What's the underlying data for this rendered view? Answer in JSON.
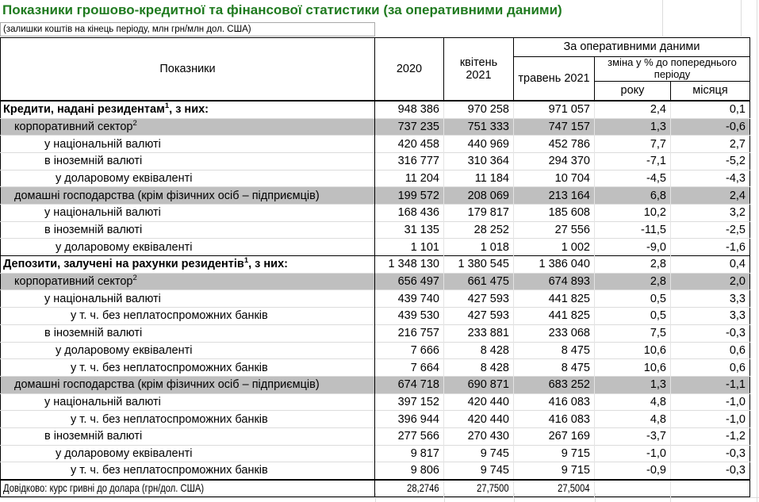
{
  "page": {
    "title": "Показники грошово-кредитної та фінансової статистики (за оперативними даними)",
    "subtitle": "(залишки коштів на кінець періоду, млн грн/млн дол. США)",
    "title_color": "#1f7a1f",
    "shade_color": "#bfbfbf"
  },
  "table": {
    "header": {
      "indicators": "Показники",
      "col_2020": "2020",
      "col_apr": "квітень 2021",
      "operational_group": "За оперативними даними",
      "col_may": "травень 2021",
      "change_group": "зміна у % до попереднього періоду",
      "col_year": "року",
      "col_month": "місяця"
    },
    "rows": [
      {
        "label": "Кредити, надані резидентам",
        "sup": "1",
        "tail": ", з них:",
        "bold": true,
        "indent": 0,
        "shaded": false,
        "values": [
          "948 386",
          "970 258",
          "971 057",
          "2,4",
          "0,1"
        ]
      },
      {
        "label": "корпоративний сектор",
        "sup": "2",
        "indent": 1,
        "shaded": true,
        "values": [
          "737 235",
          "751 333",
          "747 157",
          "1,3",
          "-0,6"
        ]
      },
      {
        "label": "у національній валюті",
        "indent": 2,
        "values": [
          "420 458",
          "440 969",
          "452 786",
          "7,7",
          "2,7"
        ]
      },
      {
        "label": "в іноземній валюті",
        "indent": 2,
        "values": [
          "316 777",
          "310 364",
          "294 370",
          "-7,1",
          "-5,2"
        ]
      },
      {
        "label": "у доларовому еквіваленті",
        "indent": 3,
        "values": [
          "11 204",
          "11 184",
          "10 704",
          "-4,5",
          "-4,3"
        ]
      },
      {
        "label": "домашні господарства (крім фізичних осіб – підприємців)",
        "indent": 1,
        "shaded": true,
        "values": [
          "199 572",
          "208 069",
          "213 164",
          "6,8",
          "2,4"
        ]
      },
      {
        "label": "у національній валюті",
        "indent": 2,
        "values": [
          "168 436",
          "179 817",
          "185 608",
          "10,2",
          "3,2"
        ]
      },
      {
        "label": "в іноземній валюті",
        "indent": 2,
        "values": [
          "31 135",
          "28 252",
          "27 556",
          "-11,5",
          "-2,5"
        ]
      },
      {
        "label": "у доларовому еквіваленті",
        "indent": 3,
        "values": [
          "1 101",
          "1 018",
          "1 002",
          "-9,0",
          "-1,6"
        ]
      },
      {
        "label": "Депозити, залучені на рахунки резидентів",
        "sup": "1",
        "tail": ", з них:",
        "bold": true,
        "indent": 0,
        "shaded": false,
        "values": [
          "1 348 130",
          "1 380 545",
          "1 386 040",
          "2,8",
          "0,4"
        ]
      },
      {
        "label": "корпоративний сектор",
        "sup": "2",
        "indent": 1,
        "shaded": true,
        "values": [
          "656 497",
          "661 475",
          "674 893",
          "2,8",
          "2,0"
        ]
      },
      {
        "label": "у національній валюті",
        "indent": 2,
        "values": [
          "439 740",
          "427 593",
          "441 825",
          "0,5",
          "3,3"
        ]
      },
      {
        "label": "у т. ч. без неплатоспроможних банків",
        "indent": 4,
        "values": [
          "439 530",
          "427 593",
          "441 825",
          "0,5",
          "3,3"
        ]
      },
      {
        "label": "в іноземній валюті",
        "indent": 2,
        "values": [
          "216 757",
          "233 881",
          "233 068",
          "7,5",
          "-0,3"
        ]
      },
      {
        "label": "у доларовому еквіваленті",
        "indent": 3,
        "values": [
          "7 666",
          "8 428",
          "8 475",
          "10,6",
          "0,6"
        ]
      },
      {
        "label": "у т. ч. без неплатоспроможних банків",
        "indent": 4,
        "values": [
          "7 664",
          "8 428",
          "8 475",
          "10,6",
          "0,6"
        ]
      },
      {
        "label": "домашні господарства (крім фізичних осіб – підприємців)",
        "indent": 1,
        "shaded": true,
        "values": [
          "674 718",
          "690 871",
          "683 252",
          "1,3",
          "-1,1"
        ]
      },
      {
        "label": "у національній валюті",
        "indent": 2,
        "values": [
          "397 152",
          "420 440",
          "416 083",
          "4,8",
          "-1,0"
        ]
      },
      {
        "label": "у т. ч. без неплатоспроможних банків",
        "indent": 4,
        "values": [
          "396 944",
          "420 440",
          "416 083",
          "4,8",
          "-1,0"
        ]
      },
      {
        "label": "в іноземній валюті",
        "indent": 2,
        "values": [
          "277 566",
          "270 430",
          "267 169",
          "-3,7",
          "-1,2"
        ]
      },
      {
        "label": "у доларовому еквіваленті",
        "indent": 3,
        "values": [
          "9 817",
          "9 745",
          "9 715",
          "-1,0",
          "-0,3"
        ]
      },
      {
        "label": "у т. ч. без неплатоспроможних банків",
        "indent": 4,
        "values": [
          "9 806",
          "9 745",
          "9 715",
          "-0,9",
          "-0,3"
        ]
      },
      {
        "label": "Довідково: курс гривні до долара (грн/дол. США)",
        "indent": 0,
        "reference": true,
        "values": [
          "28,2746",
          "27,7500",
          "27,5004",
          "",
          ""
        ]
      }
    ]
  }
}
